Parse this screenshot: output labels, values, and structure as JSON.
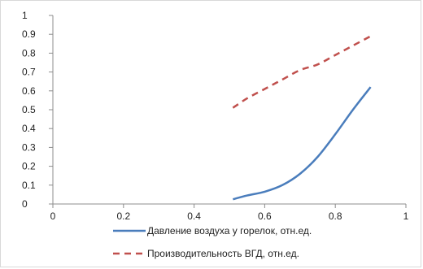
{
  "chart_data": {
    "type": "line",
    "title": "",
    "xlabel": "",
    "ylabel": "",
    "xlim": [
      0,
      1
    ],
    "ylim": [
      0,
      1
    ],
    "x_ticks": [
      0,
      0.2,
      0.4,
      0.6,
      0.8,
      1
    ],
    "x_tick_labels": [
      "0",
      "0.2",
      "0.4",
      "0.6",
      "0.8",
      "1"
    ],
    "y_ticks": [
      0,
      0.1,
      0.2,
      0.3,
      0.4,
      0.5,
      0.6,
      0.7,
      0.8,
      0.9,
      1
    ],
    "y_tick_labels": [
      "0",
      "0.1",
      "0.2",
      "0.3",
      "0.4",
      "0.5",
      "0.6",
      "0.7",
      "0.8",
      "0.9",
      "1"
    ],
    "grid": false,
    "legend_position": "bottom",
    "series": [
      {
        "name": "Давление воздуха у горелок, отн.ед.",
        "color": "#4a7dbc",
        "style": "solid",
        "x": [
          0.51,
          0.55,
          0.6,
          0.65,
          0.7,
          0.75,
          0.8,
          0.85,
          0.9
        ],
        "y": [
          0.025,
          0.045,
          0.065,
          0.1,
          0.16,
          0.25,
          0.37,
          0.5,
          0.62
        ]
      },
      {
        "name": "Производительность ВГД, отн.ед.",
        "color": "#c0504d",
        "style": "dashed",
        "x": [
          0.51,
          0.55,
          0.6,
          0.65,
          0.7,
          0.75,
          0.8,
          0.85,
          0.9
        ],
        "y": [
          0.51,
          0.56,
          0.61,
          0.66,
          0.71,
          0.74,
          0.79,
          0.84,
          0.89
        ]
      }
    ]
  }
}
